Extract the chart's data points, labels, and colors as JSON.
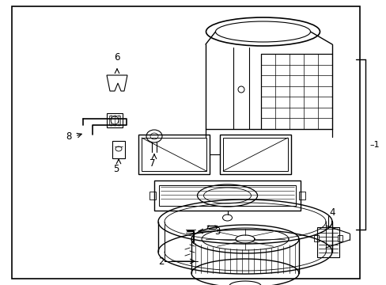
{
  "bg_color": "#ffffff",
  "border_color": "#000000",
  "line_color": "#000000",
  "text_color": "#000000",
  "figsize": [
    4.89,
    3.6
  ],
  "dpi": 100
}
